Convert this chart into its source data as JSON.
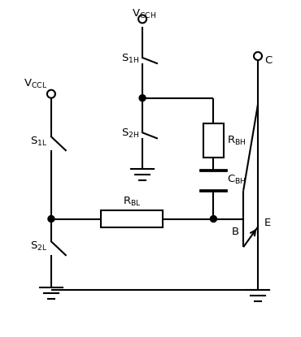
{
  "bg_color": "#ffffff",
  "line_color": "#000000",
  "lw": 1.5,
  "figsize": [
    3.7,
    4.15
  ],
  "dpi": 100,
  "xlim": [
    0,
    370
  ],
  "ylim": [
    0,
    415
  ]
}
